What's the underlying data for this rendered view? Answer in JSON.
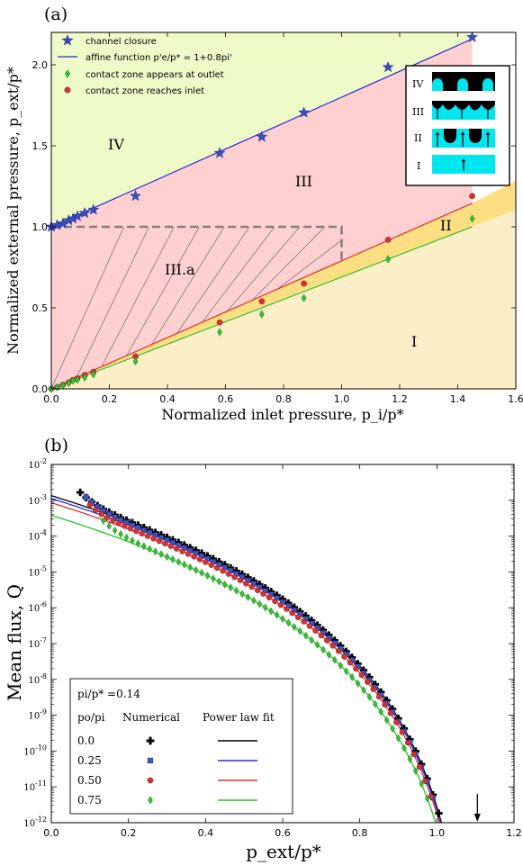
{
  "chart_data": [
    {
      "panel_label": "(a)",
      "type": "scatter",
      "xlabel": "Normalized inlet pressure, p_i/p*",
      "ylabel": "Normalized external pressure, p_ext/p*",
      "xlim": [
        0.0,
        1.6
      ],
      "ylim": [
        0.0,
        2.2
      ],
      "xticks": [
        "0.0",
        "0.2",
        "0.4",
        "0.6",
        "0.8",
        "1.0",
        "1.2",
        "1.4",
        "1.6"
      ],
      "yticks": [
        "0.0",
        "0.5",
        "1.0",
        "1.5",
        "2.0"
      ],
      "grid": false,
      "legend_position": "top-left",
      "legend": [
        {
          "label": "channel closure",
          "marker": "star",
          "color": "#3a4bbd"
        },
        {
          "label": "affine function p'e/p* = 1+0.8pi'",
          "marker": "line",
          "color": "#2b2bd6"
        },
        {
          "label": "contact zone appears at outlet",
          "marker": "diamond",
          "color": "#33c233"
        },
        {
          "label": "contact zone reaches inlet",
          "marker": "circle",
          "color": "#d93030"
        }
      ],
      "regions": [
        {
          "label": "IV",
          "color": "#eefac8"
        },
        {
          "label": "III",
          "color": "#ffd0d0"
        },
        {
          "label": "III.a",
          "color": "#ffd0d0"
        },
        {
          "label": "II",
          "color": "#fcdf82"
        },
        {
          "label": "I",
          "color": "#fcefc8"
        }
      ],
      "region_boundaries": {
        "closure_line": {
          "slope": 0.8,
          "intercept": 1.0
        },
        "inlet_line": {
          "slope": 0.79,
          "intercept": 0.0
        },
        "outlet_line": {
          "slope": 0.69,
          "intercept": 0.0
        },
        "illustrated_range": {
          "xmin": 0.0,
          "xmax": 1.45
        },
        "shaded_extension": {
          "xmin": 1.45,
          "xmax": 1.6
        }
      },
      "dashed_box": {
        "x": [
          0.0,
          1.0
        ],
        "y_top": 1.0,
        "y_right_bottom": 0.78
      },
      "series": [
        {
          "name": "channel closure",
          "marker": "star",
          "color": "#3a4bbd",
          "x": [
            0.0,
            0.02,
            0.04,
            0.06,
            0.075,
            0.09,
            0.115,
            0.145,
            0.29,
            0.58,
            0.725,
            0.87,
            1.16,
            1.45
          ],
          "y": [
            1.0,
            1.01,
            1.02,
            1.04,
            1.05,
            1.065,
            1.085,
            1.105,
            1.19,
            1.455,
            1.555,
            1.705,
            1.985,
            2.17
          ]
        },
        {
          "name": "contact zone reaches inlet",
          "marker": "circle",
          "color": "#d93030",
          "x": [
            0.0,
            0.02,
            0.04,
            0.06,
            0.075,
            0.09,
            0.115,
            0.145,
            0.29,
            0.58,
            0.725,
            0.87,
            1.16,
            1.45
          ],
          "y": [
            0.0,
            0.01,
            0.025,
            0.04,
            0.055,
            0.065,
            0.085,
            0.105,
            0.2,
            0.41,
            0.54,
            0.65,
            0.92,
            1.19
          ]
        },
        {
          "name": "contact zone appears at outlet",
          "marker": "diamond",
          "color": "#33c233",
          "x": [
            0.0,
            0.02,
            0.04,
            0.06,
            0.075,
            0.09,
            0.115,
            0.145,
            0.29,
            0.58,
            0.725,
            0.87,
            1.16,
            1.45
          ],
          "y": [
            0.0,
            0.01,
            0.02,
            0.035,
            0.05,
            0.055,
            0.07,
            0.09,
            0.17,
            0.35,
            0.46,
            0.56,
            0.8,
            1.05
          ]
        }
      ],
      "inset": {
        "labels": [
          "IV",
          "III",
          "II",
          "I"
        ],
        "fill_color": "#00e6ee",
        "contact_color": "#000000"
      }
    },
    {
      "panel_label": "(b)",
      "type": "line",
      "xlabel": "p_ext/p*",
      "ylabel": "Mean flux, Q",
      "xlim": [
        0.0,
        1.2
      ],
      "ylim_log10": [
        -12,
        -2
      ],
      "log_y": true,
      "xticks": [
        "0.0",
        "0.2",
        "0.4",
        "0.6",
        "0.8",
        "1.0",
        "1.2"
      ],
      "yticks": [
        "10-12",
        "10-11",
        "10-10",
        "10-9",
        "10-8",
        "10-7",
        "10-6",
        "10-5",
        "10-4",
        "10-3",
        "10-2"
      ],
      "ytick_exponents": [
        -12,
        -11,
        -10,
        -9,
        -8,
        -7,
        -6,
        -5,
        -4,
        -3,
        -2
      ],
      "grid": false,
      "legend_position": "bottom-left",
      "legend_title": "pi/p* =0.14",
      "legend_headers": [
        "po/pi",
        "Numerical",
        "Power law fit"
      ],
      "legend_rows": [
        "0.0",
        "0.25",
        "0.50",
        "0.75"
      ],
      "fit_law": {
        "pc": 1.105,
        "n": 8.5,
        "marker_step": 0.015,
        "asymptote_arrow_x": 1.105
      },
      "series": [
        {
          "name": "0.0",
          "marker": "plus",
          "color": "#000000",
          "line_color": "#000000",
          "marker_start": 0.075,
          "fit_log10Q_at_0": -2.87,
          "marker_offset": 0.0
        },
        {
          "name": "0.25",
          "marker": "square",
          "color": "#3f52c8",
          "line_color": "#2a2ae0",
          "marker_start": 0.09,
          "fit_log10Q_at_0": -2.95,
          "marker_offset": 0.0
        },
        {
          "name": "0.50",
          "marker": "circle",
          "color": "#d93030",
          "line_color": "#d93030",
          "marker_start": 0.1,
          "fit_log10Q_at_0": -3.07,
          "marker_offset": -0.06
        },
        {
          "name": "0.75",
          "marker": "diamond",
          "color": "#33c233",
          "line_color": "#22c422",
          "marker_start": 0.135,
          "fit_log10Q_at_0": -3.42,
          "marker_offset": -0.02
        }
      ]
    }
  ]
}
